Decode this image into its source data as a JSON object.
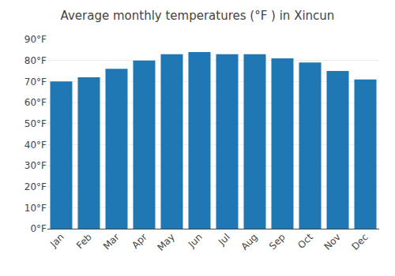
{
  "chart_data": {
    "type": "bar",
    "title": "Average monthly temperatures (°F ) in Xincun",
    "categories": [
      "Jan",
      "Feb",
      "Mar",
      "Apr",
      "May",
      "Jun",
      "Jul",
      "Aug",
      "Sep",
      "Oct",
      "Nov",
      "Dec"
    ],
    "values": [
      70,
      72,
      76,
      80,
      83,
      84,
      83,
      83,
      81,
      79,
      75,
      71
    ],
    "ylim": [
      0,
      90
    ],
    "yticks": [
      {
        "value": 0,
        "label": "0°F"
      },
      {
        "value": 10,
        "label": "10°F"
      },
      {
        "value": 20,
        "label": "20°F"
      },
      {
        "value": 30,
        "label": "30°F"
      },
      {
        "value": 40,
        "label": "40°F"
      },
      {
        "value": 50,
        "label": "50°F"
      },
      {
        "value": 60,
        "label": "60°F"
      },
      {
        "value": 70,
        "label": "70°F"
      },
      {
        "value": 80,
        "label": "80°F"
      },
      {
        "value": 90,
        "label": "90°F"
      }
    ],
    "grid": true
  }
}
